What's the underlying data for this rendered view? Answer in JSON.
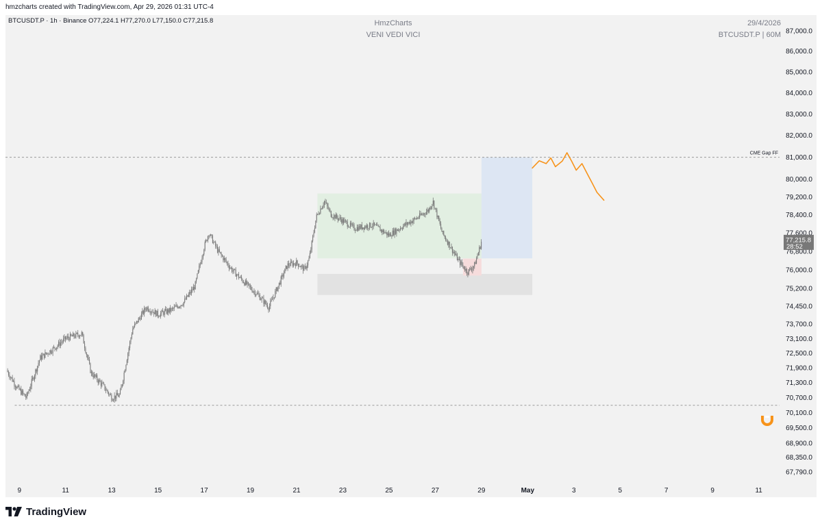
{
  "header": {
    "text": "hmzcharts created with TradingView.com, Apr 29, 2026 01:31 UTC-4"
  },
  "chart_header": {
    "symbol": "BTCUSDT.P",
    "interval": "1h",
    "exchange": "Binance",
    "open": "O77,224.1",
    "high": "H77,270.0",
    "low": "L77,150.0",
    "close": "C77,215.8",
    "symbol_line": "BTCUSDT.P · 1h · Binance"
  },
  "watermark": {
    "author": "HmzCharts",
    "motto": "VENI VEDI VICI",
    "date": "29/4/2026",
    "symbol_tf": "BTCUSDT.P | 60M"
  },
  "price_badge": {
    "price": "77,215.8",
    "countdown": "28:52"
  },
  "annotations": {
    "cme_gap": {
      "label": "CME Gap FF",
      "price": 80990
    },
    "low_level": {
      "price": 70390
    }
  },
  "footer": {
    "brand": "TradingView"
  },
  "colors": {
    "candle": "#787878",
    "accent_orange": "#f7931a",
    "green_zone": "#e2efe2",
    "blue_zone": "#dde6f3",
    "grey_zone": "#e2e2e2",
    "red_zone": "#f6dcdc",
    "background": "#f2f2f2"
  },
  "chart_data": {
    "type": "candlestick",
    "title": "",
    "xlabel": "",
    "ylabel": "",
    "scale": "log",
    "ylim": [
      67500,
      87300
    ],
    "y_ticks": [
      "87,000.0",
      "86,000.0",
      "85,000.0",
      "84,000.0",
      "83,000.0",
      "82,000.0",
      "81,000.0",
      "80,000.0",
      "79,200.0",
      "78,400.0",
      "77,600.0",
      "76,800.0",
      "76,000.0",
      "75,200.0",
      "74,450.0",
      "73,700.0",
      "73,100.0",
      "72,500.0",
      "71,900.0",
      "71,300.0",
      "70,700.0",
      "70,100.0",
      "69,500.0",
      "68,900.0",
      "68,350.0",
      "67,790.0"
    ],
    "x_ticks": [
      "9",
      "11",
      "13",
      "15",
      "17",
      "19",
      "21",
      "23",
      "25",
      "27",
      "29",
      "May",
      "3",
      "5",
      "7",
      "9",
      "11"
    ],
    "x_tick_days": [
      9,
      11,
      13,
      15,
      17,
      19,
      21,
      23,
      25,
      27,
      29,
      31,
      33,
      35,
      37,
      39,
      41
    ],
    "xlim_days": [
      8.4,
      41.9
    ],
    "series": [
      {
        "name": "BTCUSDT.P",
        "price_path_days": [
          8.45,
          8.9,
          9.3,
          9.9,
          10.5,
          11.0,
          11.7,
          12.1,
          12.6,
          13.0,
          13.35,
          13.9,
          14.5,
          15.0,
          15.6,
          16.1,
          16.6,
          17.0,
          17.2,
          17.6,
          18.2,
          18.8,
          19.35,
          19.8,
          20.2,
          20.6,
          21.0,
          21.35,
          21.55,
          21.85,
          22.2,
          22.5,
          22.9,
          23.5,
          24.3,
          25.0,
          25.6,
          26.2,
          26.7,
          26.9,
          27.3,
          27.6,
          28.0,
          28.4,
          28.7,
          29.0
        ],
        "price_path_values": [
          71800,
          71100,
          70700,
          72300,
          72700,
          73100,
          73300,
          71700,
          71200,
          70700,
          70800,
          73500,
          74400,
          74100,
          74300,
          74600,
          75300,
          77000,
          77600,
          76800,
          76000,
          75400,
          74900,
          74400,
          75300,
          76200,
          76300,
          76000,
          76500,
          78300,
          79000,
          78400,
          78200,
          77800,
          77950,
          77500,
          77900,
          78250,
          78600,
          79000,
          77600,
          77100,
          76400,
          75900,
          76200,
          77200
        ],
        "last_close": 77215.8
      }
    ],
    "zones": [
      {
        "label": "",
        "color": "green",
        "day_start": 21.9,
        "day_end": 29.2,
        "price_low": 76490,
        "price_high": 79350
      },
      {
        "label": "",
        "color": "blue",
        "day_start": 29.0,
        "day_end": 31.2,
        "price_low": 76490,
        "price_high": 80990
      },
      {
        "label": "",
        "color": "grey",
        "day_start": 21.9,
        "day_end": 31.2,
        "price_low": 74920,
        "price_high": 75820
      },
      {
        "label": "",
        "color": "red",
        "day_start": 28.2,
        "day_end": 29.0,
        "price_low": 75750,
        "price_high": 76480
      }
    ],
    "projection": {
      "days": [
        31.2,
        31.5,
        31.8,
        32.0,
        32.2,
        32.5,
        32.7,
        32.9,
        33.1,
        33.35,
        33.6,
        33.8,
        34.0,
        34.3
      ],
      "values": [
        80500,
        80830,
        80700,
        80960,
        80560,
        80820,
        81200,
        80820,
        80400,
        80700,
        80200,
        79800,
        79400,
        79050
      ]
    }
  }
}
